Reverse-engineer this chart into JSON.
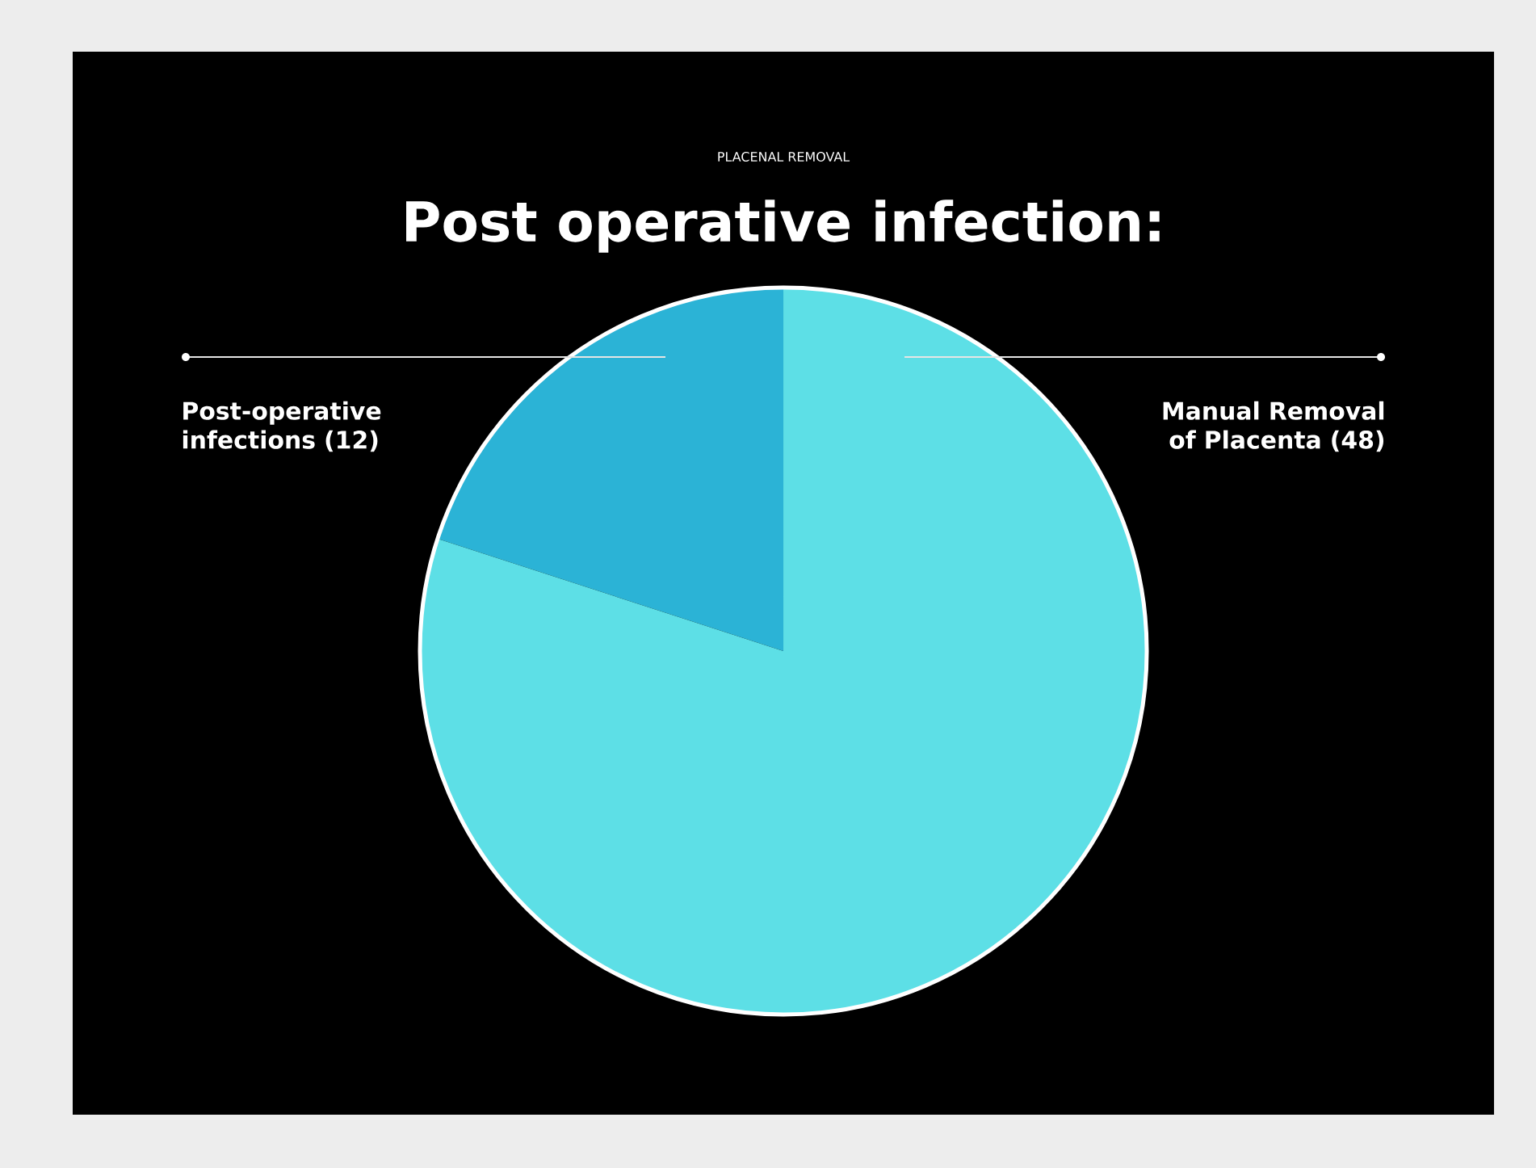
{
  "chart_data": {
    "type": "pie",
    "subtitle": "PLACENAL REMOVAL",
    "title": "Post operative infection:",
    "categories": [
      "Post-operative infections (12)",
      "Manual Removal of Placenta (48)"
    ],
    "values": [
      12,
      48
    ],
    "colors": [
      "#2bb3d6",
      "#5ddfe6"
    ]
  }
}
